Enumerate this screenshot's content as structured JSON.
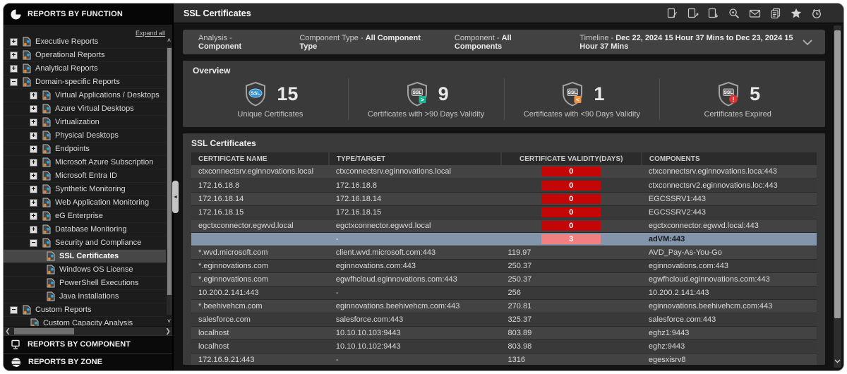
{
  "sidebar": {
    "title": "REPORTS BY FUNCTION",
    "expand_all": "Expand all",
    "tree": [
      {
        "label": "Executive Reports",
        "level": 0,
        "toggle": "+"
      },
      {
        "label": "Operational Reports",
        "level": 0,
        "toggle": "+"
      },
      {
        "label": "Analytical Reports",
        "level": 0,
        "toggle": "+"
      },
      {
        "label": "Domain-specific Reports",
        "level": 0,
        "toggle": "-"
      },
      {
        "label": "Virtual Applications / Desktops",
        "level": 1,
        "toggle": "+"
      },
      {
        "label": "Azure Virtual Desktops",
        "level": 1,
        "toggle": "+"
      },
      {
        "label": "Virtualization",
        "level": 1,
        "toggle": "+"
      },
      {
        "label": "Physical Desktops",
        "level": 1,
        "toggle": "+"
      },
      {
        "label": "Endpoints",
        "level": 1,
        "toggle": "+"
      },
      {
        "label": "Microsoft Azure Subscription",
        "level": 1,
        "toggle": "+"
      },
      {
        "label": "Microsoft Entra ID",
        "level": 1,
        "toggle": "+"
      },
      {
        "label": "Synthetic Monitoring",
        "level": 1,
        "toggle": "+"
      },
      {
        "label": "Web Application Monitoring",
        "level": 1,
        "toggle": "+"
      },
      {
        "label": "eG Enterprise",
        "level": 1,
        "toggle": "+"
      },
      {
        "label": "Database Monitoring",
        "level": 1,
        "toggle": "+"
      },
      {
        "label": "Security and Compliance",
        "level": 1,
        "toggle": "-"
      },
      {
        "label": "SSL Certificates",
        "level": 2,
        "toggle": null,
        "selected": true
      },
      {
        "label": "Windows OS License",
        "level": 2,
        "toggle": null
      },
      {
        "label": "PowerShell Executions",
        "level": 2,
        "toggle": null
      },
      {
        "label": "Java Installations",
        "level": 2,
        "toggle": null
      },
      {
        "label": "Custom Reports",
        "level": 0,
        "toggle": "-"
      },
      {
        "label": "Custom Capacity Analysis",
        "level": 1,
        "toggle": null
      }
    ],
    "bottom_items": [
      {
        "label": "REPORTS BY COMPONENT",
        "icon": "component-icon"
      },
      {
        "label": "REPORTS BY ZONE",
        "icon": "zone-icon"
      }
    ]
  },
  "header": {
    "title": "SSL Certificates",
    "icons": [
      "report-edit-icon",
      "report-annotate-icon",
      "report-export-icon",
      "report-search-icon",
      "email-icon",
      "copy-icon",
      "favorite-icon",
      "schedule-icon"
    ]
  },
  "filters": [
    {
      "label": "Analysis -",
      "value": "Component"
    },
    {
      "label": "Component Type -",
      "value": "All Component Type"
    },
    {
      "label": "Component -",
      "value": "All Components"
    },
    {
      "label": "Timeline -",
      "value": "Dec 22, 2024 15 Hour 37 Mins to Dec 23, 2024 15 Hour 37 Mins"
    }
  ],
  "overview": {
    "title": "Overview",
    "cards": [
      {
        "value": "15",
        "label": "Unique Certificates",
        "variant": "unique"
      },
      {
        "value": "9",
        "label": "Certificates with >90 Days Validity",
        "variant": "gt90"
      },
      {
        "value": "1",
        "label": "Certificates with <90 Days Validity",
        "variant": "lt90"
      },
      {
        "value": "5",
        "label": "Certificates Expired",
        "variant": "expired"
      }
    ]
  },
  "table": {
    "title": "SSL Certificates",
    "columns": [
      "CERTIFICATE NAME",
      "TYPE/TARGET",
      "CERTIFICATE VALIDITY(DAYS)",
      "COMPONENTS"
    ],
    "rows": [
      {
        "name": "ctxconnectsrv.eginnovations.local",
        "type": "ctxconnectsrv.eginnovations.local",
        "validity": "0",
        "badge": "red",
        "component": "ctxconnectsrv.eginnovations.loca:443"
      },
      {
        "name": "172.16.18.8",
        "type": "172.16.18.8",
        "validity": "0",
        "badge": "red",
        "component": "ctxconnectsrv2.eginnovations.loc:443"
      },
      {
        "name": "172.16.18.14",
        "type": "172.16.18.14",
        "validity": "0",
        "badge": "red",
        "component": "EGCSSRV1:443"
      },
      {
        "name": "172.16.18.15",
        "type": "172.16.18.15",
        "validity": "0",
        "badge": "red",
        "component": "EGCSSRV2:443"
      },
      {
        "name": "egctxconnector.egwvd.local",
        "type": "egctxconnector.egwvd.local",
        "validity": "0",
        "badge": "red",
        "component": "egctxconnector.egwvd.local:443"
      },
      {
        "name": "",
        "type": "-",
        "validity": "3",
        "badge": "pink",
        "component": "adVM:443",
        "highlighted": true
      },
      {
        "name": "*.wvd.microsoft.com",
        "type": "client.wvd.microsoft.com:443",
        "validity": "119.97",
        "badge": null,
        "component": "AVD_Pay-As-You-Go"
      },
      {
        "name": "*.eginnovations.com",
        "type": "eginnovations.com:443",
        "validity": "250.37",
        "badge": null,
        "component": "eginnovations.com:443"
      },
      {
        "name": "*.eginnovations.com",
        "type": "egwfhcloud.eginnovations.com:443",
        "validity": "250.37",
        "badge": null,
        "component": "egwfhcloud.eginnovations.com:443"
      },
      {
        "name": "10.200.2.141:443",
        "type": "-",
        "validity": "256",
        "badge": null,
        "component": "10.200.2.141:443"
      },
      {
        "name": "*.beehivehcm.com",
        "type": "eginnovations.beehivehcm.com:443",
        "validity": "270.81",
        "badge": null,
        "component": "eginnovations.beehivehcm.com:443"
      },
      {
        "name": "salesforce.com",
        "type": "salesforce.com:443",
        "validity": "325.37",
        "badge": null,
        "component": "salesforce.com:443"
      },
      {
        "name": "localhost",
        "type": "10.10.10.103:9443",
        "validity": "803.89",
        "badge": null,
        "component": "eghz1:9443"
      },
      {
        "name": "localhost",
        "type": "10.10.10.102:9443",
        "validity": "803.98",
        "badge": null,
        "component": "eghz:9443"
      },
      {
        "name": "172.16.9.21:443",
        "type": "-",
        "validity": "1316",
        "badge": null,
        "component": "egesxisrv8"
      }
    ]
  },
  "colors": {
    "badge_red": "#c40606",
    "badge_pink": "#f28080",
    "highlight_row": "#8395aa",
    "ssl_blue": "#2f8fd0",
    "ssl_green": "#1bb394",
    "ssl_orange": "#f0913d",
    "ssl_alert_red": "#e03131"
  }
}
